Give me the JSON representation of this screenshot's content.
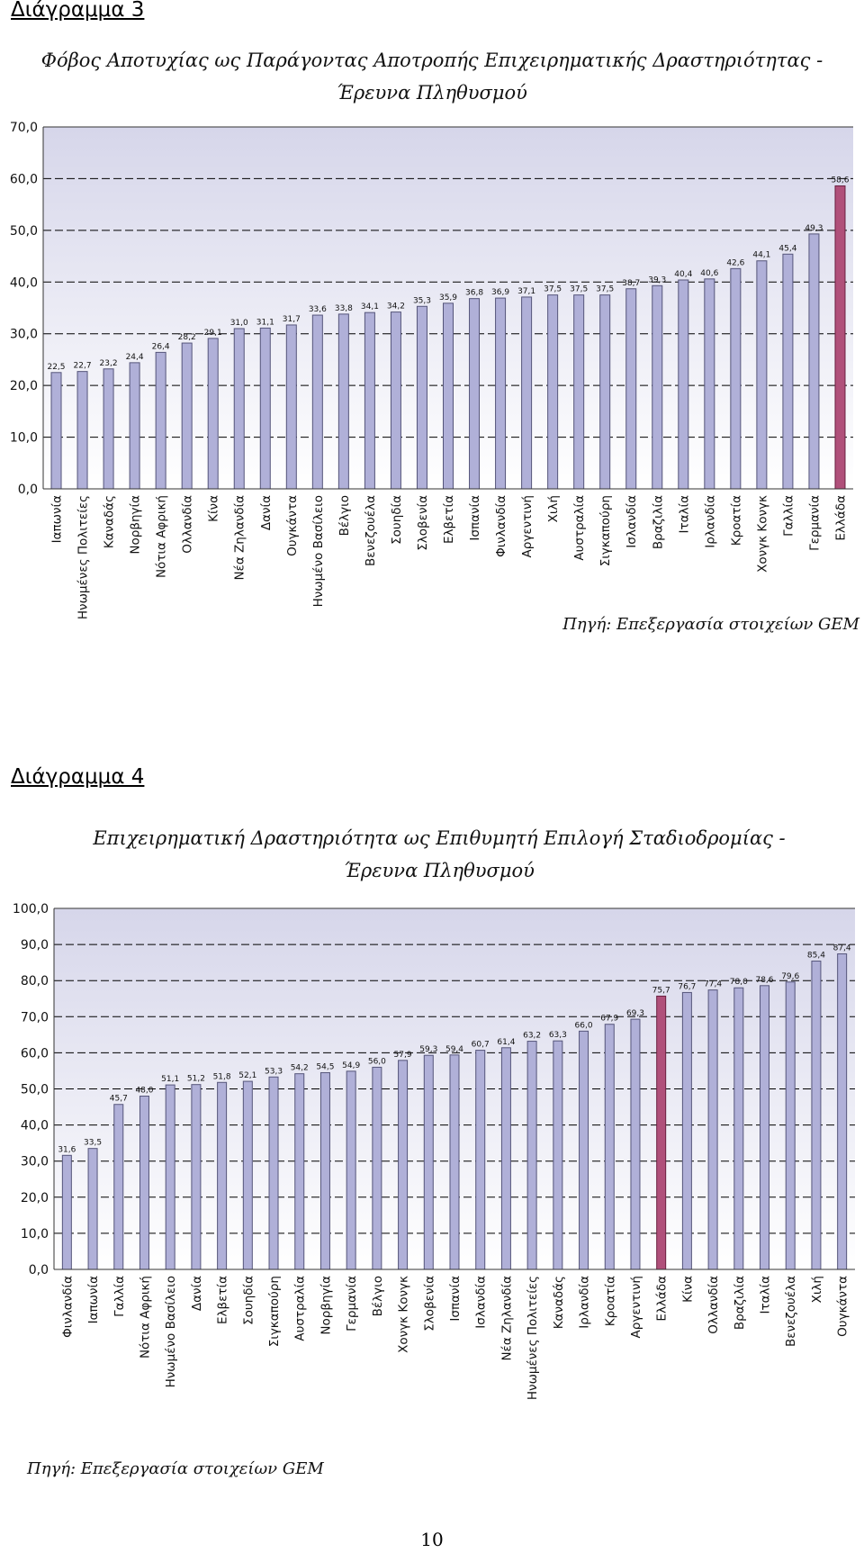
{
  "page": {
    "heading3": "Διάγραμμα 3",
    "heading4": "Διάγραμμα 4",
    "page_number": "10"
  },
  "colors": {
    "bar": "#b0b0d8",
    "bar_stroke": "#55557a",
    "highlight": "#b0507a",
    "highlight_stroke": "#6a2040",
    "plot_top": "#d6d6ea",
    "plot_bottom": "#ffffff",
    "gridline": "#000000"
  },
  "chart_data": [
    {
      "type": "bar",
      "title_lines": [
        "Φόβος Αποτυχίας ως Παράγοντας Αποτροπής Επιχειρηματικής Δραστηριότητας -",
        "Έρευνα Πληθυσμού"
      ],
      "source": "Πηγή: Επεξεργασία στοιχείων GEM",
      "xlabel": "",
      "ylabel": "",
      "ylim": [
        0,
        70
      ],
      "yticks": [
        "0,0",
        "10,0",
        "20,0",
        "30,0",
        "40,0",
        "50,0",
        "60,0",
        "70,0"
      ],
      "grid": true,
      "highlight": "Ελλάδα",
      "categories": [
        "Ιαπωνία",
        "Ηνωμένες Πολιτείες",
        "Καναδάς",
        "Νορβηγία",
        "Νότια Αφρική",
        "Ολλανδία",
        "Κίνα",
        "Νέα Ζηλανδία",
        "Δανία",
        "Ουγκάντα",
        "Ηνωμένο Βασίλειο",
        "Βέλγιο",
        "Βενεζουέλα",
        "Σουηδία",
        "Σλοβενία",
        "Ελβετία",
        "Ισπανία",
        "Φινλανδία",
        "Αργεντινή",
        "Χιλή",
        "Αυστραλία",
        "Σιγκαπούρη",
        "Ισλανδία",
        "Βραζιλία",
        "Ιταλία",
        "Ιρλανδία",
        "Κροατία",
        "Χονγκ Κονγκ",
        "Γαλλία",
        "Γερμανία",
        "Ελλάδα"
      ],
      "values": [
        22.5,
        22.7,
        23.2,
        24.4,
        26.4,
        28.2,
        29.1,
        31.0,
        31.1,
        31.7,
        33.6,
        33.8,
        34.1,
        34.2,
        35.3,
        35.9,
        36.8,
        36.9,
        37.1,
        37.5,
        37.5,
        37.5,
        38.7,
        39.3,
        40.4,
        40.6,
        42.6,
        44.1,
        45.4,
        49.3,
        58.6
      ],
      "value_labels": [
        "22,5",
        "22,7",
        "23,2",
        "24,4",
        "26,4",
        "28,2",
        "29,1",
        "31,0",
        "31,1",
        "31,7",
        "33,6",
        "33,8",
        "34,1",
        "34,2",
        "35,3",
        "35,9",
        "36,8",
        "36,9",
        "37,1",
        "37,5",
        "37,5",
        "37,5",
        "38,7",
        "39,3",
        "40,4",
        "40,6",
        "42,6",
        "44,1",
        "45,4",
        "49,3",
        "58,6"
      ]
    },
    {
      "type": "bar",
      "title_lines": [
        "Επιχειρηματική Δραστηριότητα ως Επιθυμητή Επιλογή Σταδιοδρομίας -",
        "Έρευνα Πληθυσμού"
      ],
      "source": "Πηγή: Επεξεργασία στοιχείων GEM",
      "xlabel": "",
      "ylabel": "",
      "ylim": [
        0,
        100
      ],
      "yticks": [
        "0,0",
        "10,0",
        "20,0",
        "30,0",
        "40,0",
        "50,0",
        "60,0",
        "70,0",
        "80,0",
        "90,0",
        "100,0"
      ],
      "grid": true,
      "highlight": "Ελλάδα",
      "categories": [
        "Φινλανδία",
        "Ιαπωνία",
        "Γαλλία",
        "Νότια Αφρική",
        "Ηνωμένο Βασίλειο",
        "Δανία",
        "Ελβετία",
        "Σουηδία",
        "Σιγκαπούρη",
        "Αυστραλία",
        "Νορβηγία",
        "Γερμανία",
        "Βέλγιο",
        "Χονγκ Κονγκ",
        "Σλοβενία",
        "Ισπανία",
        "Ισλανδία",
        "Νέα Ζηλανδία",
        "Ηνωμένες Πολιτείες",
        "Καναδάς",
        "Ιρλανδία",
        "Κροατία",
        "Αργεντινή",
        "Ελλάδα",
        "Κίνα",
        "Ολλανδία",
        "Βραζιλία",
        "Ιταλία",
        "Βενεζουέλα",
        "Χιλή",
        "Ουγκάντα"
      ],
      "values": [
        31.6,
        33.5,
        45.7,
        48.0,
        51.1,
        51.2,
        51.8,
        52.1,
        53.3,
        54.2,
        54.5,
        54.9,
        56.0,
        57.9,
        59.3,
        59.4,
        60.7,
        61.4,
        63.2,
        63.3,
        66.0,
        67.9,
        69.3,
        75.7,
        76.7,
        77.4,
        78.0,
        78.6,
        79.6,
        85.4,
        87.4
      ],
      "value_labels": [
        "31,6",
        "33,5",
        "45,7",
        "48,0",
        "51,1",
        "51,2",
        "51,8",
        "52,1",
        "53,3",
        "54,2",
        "54,5",
        "54,9",
        "56,0",
        "57,9",
        "59,3",
        "59,4",
        "60,7",
        "61,4",
        "63,2",
        "63,3",
        "66,0",
        "67,9",
        "69,3",
        "75,7",
        "76,7",
        "77,4",
        "78,0",
        "78,6",
        "79,6",
        "85,4",
        "87,4"
      ]
    }
  ]
}
